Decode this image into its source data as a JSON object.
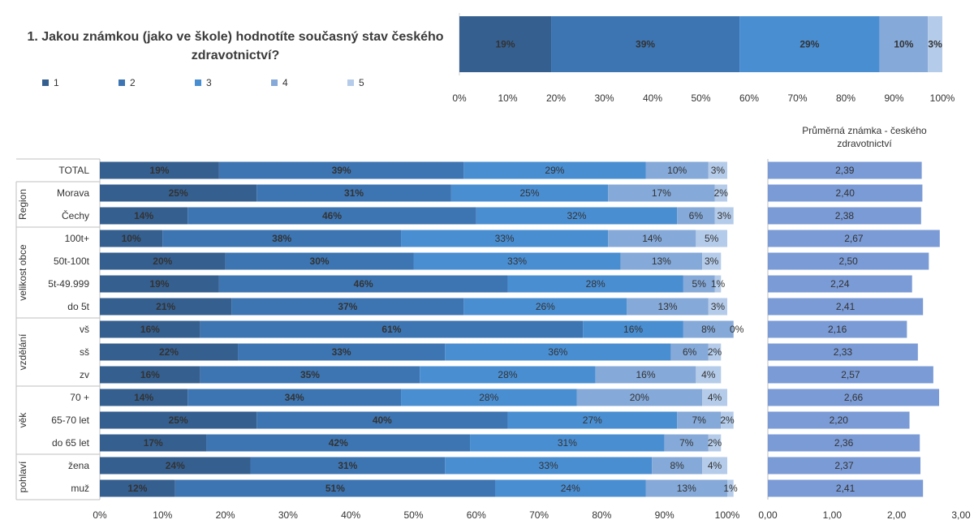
{
  "title": "1. Jakou známkou (jako ve škole) hodnotíte současný stav českého zdravotnictví?",
  "legend": [
    "1",
    "2",
    "3",
    "4",
    "5"
  ],
  "colors": [
    "#355f8f",
    "#3d75b2",
    "#4a8ed2",
    "#85a9d8",
    "#b4cbe9"
  ],
  "avg_color": "#7b9bd6",
  "chart_data": [
    {
      "type": "bar",
      "stacked": true,
      "orientation": "horizontal",
      "name": "summary",
      "categories": [
        "TOTAL"
      ],
      "series": [
        {
          "name": "1",
          "values": [
            19
          ]
        },
        {
          "name": "2",
          "values": [
            39
          ]
        },
        {
          "name": "3",
          "values": [
            29
          ]
        },
        {
          "name": "4",
          "values": [
            10
          ]
        },
        {
          "name": "5",
          "values": [
            3
          ]
        }
      ],
      "xlim": [
        0,
        100
      ],
      "ticks": [
        "0%",
        "10%",
        "20%",
        "30%",
        "40%",
        "50%",
        "60%",
        "70%",
        "80%",
        "90%",
        "100%"
      ]
    },
    {
      "type": "bar",
      "stacked": true,
      "orientation": "horizontal",
      "name": "breakdown",
      "groups": [
        {
          "label": "",
          "rows": 1
        },
        {
          "label": "Region",
          "rows": 2
        },
        {
          "label": "velikost obce",
          "rows": 4
        },
        {
          "label": "vzdělání",
          "rows": 3
        },
        {
          "label": "věk",
          "rows": 3
        },
        {
          "label": "pohlaví",
          "rows": 2
        }
      ],
      "categories": [
        "TOTAL",
        "Morava",
        "Čechy",
        "100t+",
        "50t-100t",
        "5t-49.999",
        "do 5t",
        "vš",
        "sš",
        "zv",
        "70 +",
        "65-70 let",
        "do 65 let",
        "žena",
        "muž"
      ],
      "series": [
        {
          "name": "1",
          "values": [
            19,
            25,
            14,
            10,
            20,
            19,
            21,
            16,
            22,
            16,
            14,
            25,
            17,
            24,
            12
          ]
        },
        {
          "name": "2",
          "values": [
            39,
            31,
            46,
            38,
            30,
            46,
            37,
            61,
            33,
            35,
            34,
            40,
            42,
            31,
            51
          ]
        },
        {
          "name": "3",
          "values": [
            29,
            25,
            32,
            33,
            33,
            28,
            26,
            16,
            36,
            28,
            28,
            27,
            31,
            33,
            24
          ]
        },
        {
          "name": "4",
          "values": [
            10,
            17,
            6,
            14,
            13,
            5,
            13,
            8,
            6,
            16,
            20,
            7,
            7,
            8,
            13
          ]
        },
        {
          "name": "5",
          "values": [
            3,
            2,
            3,
            5,
            3,
            1,
            3,
            0,
            2,
            4,
            4,
            2,
            2,
            4,
            1
          ]
        }
      ],
      "xlim": [
        0,
        100
      ],
      "ticks": [
        "0%",
        "10%",
        "20%",
        "30%",
        "40%",
        "50%",
        "60%",
        "70%",
        "80%",
        "90%",
        "100%"
      ]
    },
    {
      "type": "bar",
      "orientation": "horizontal",
      "name": "average",
      "title": "Průměrná známka - českého zdravotnictví",
      "categories": [
        "TOTAL",
        "Morava",
        "Čechy",
        "100t+",
        "50t-100t",
        "5t-49.999",
        "do 5t",
        "vš",
        "sš",
        "zv",
        "70 +",
        "65-70 let",
        "do 65 let",
        "žena",
        "muž"
      ],
      "values": [
        2.39,
        2.4,
        2.38,
        2.67,
        2.5,
        2.24,
        2.41,
        2.16,
        2.33,
        2.57,
        2.66,
        2.2,
        2.36,
        2.37,
        2.41
      ],
      "labels": [
        "2,39",
        "2,40",
        "2,38",
        "2,67",
        "2,50",
        "2,24",
        "2,41",
        "2,16",
        "2,33",
        "2,57",
        "2,66",
        "2,20",
        "2,36",
        "2,37",
        "2,41"
      ],
      "xlim": [
        0,
        3
      ],
      "ticks": [
        "0,00",
        "1,00",
        "2,00",
        "3,00"
      ]
    }
  ]
}
